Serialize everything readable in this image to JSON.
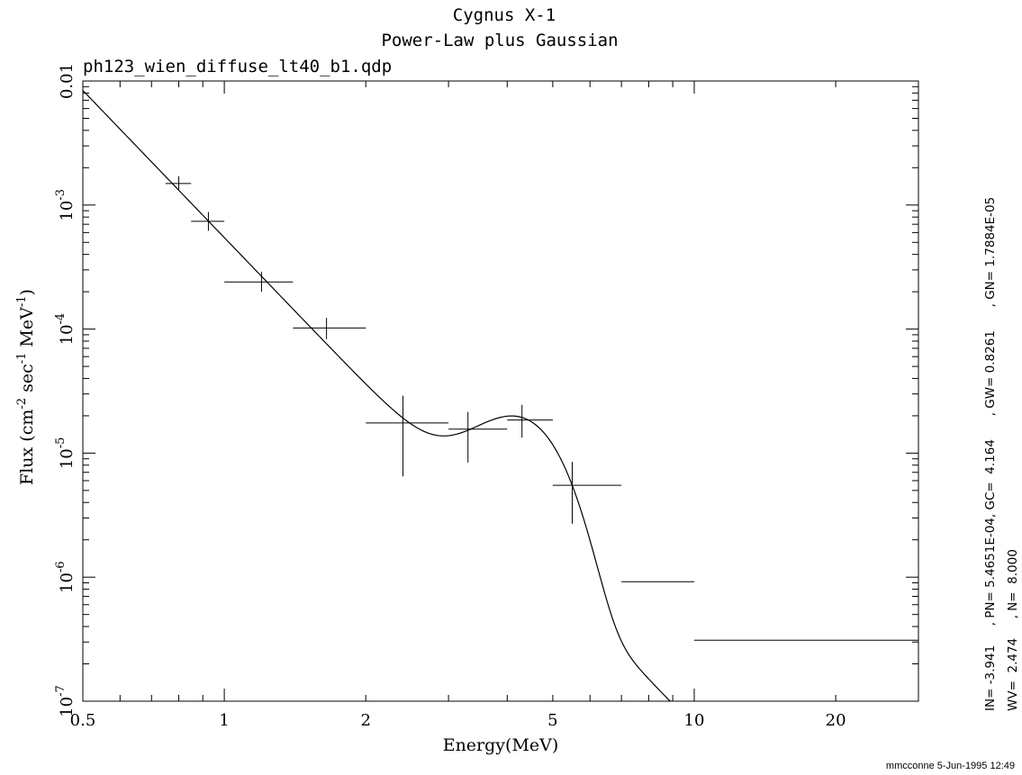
{
  "chart_data": {
    "type": "scatter",
    "title": "Cygnus X-1",
    "subtitle": "Power-Law plus Gaussian",
    "file_label": "ph123_wien_diffuse_lt40_b1.qdp",
    "xlabel": "Energy(MeV)",
    "ylabel_parts": {
      "pre": "Flux (cm",
      "exp1": "-2",
      "mid": " sec",
      "exp2": "-1",
      "mid2": " MeV",
      "exp3": "-1",
      "post": ")"
    },
    "x_scale": "log",
    "y_scale": "log",
    "xlim": [
      0.5,
      30
    ],
    "ylim": [
      1e-07,
      0.01
    ],
    "x_ticks": [
      {
        "value": 0.5,
        "label": "0.5"
      },
      {
        "value": 1,
        "label": "1"
      },
      {
        "value": 2,
        "label": "2"
      },
      {
        "value": 5,
        "label": "5"
      },
      {
        "value": 10,
        "label": "10"
      },
      {
        "value": 20,
        "label": "20"
      }
    ],
    "y_ticks": [
      {
        "value": 0.01,
        "label": "0.01",
        "base": "",
        "exp": ""
      },
      {
        "value": 0.001,
        "label": "",
        "base": "10",
        "exp": "-3"
      },
      {
        "value": 0.0001,
        "label": "",
        "base": "10",
        "exp": "-4"
      },
      {
        "value": 1e-05,
        "label": "",
        "base": "10",
        "exp": "-5"
      },
      {
        "value": 1e-06,
        "label": "",
        "base": "10",
        "exp": "-6"
      },
      {
        "value": 1e-07,
        "label": "",
        "base": "10",
        "exp": "-7"
      }
    ],
    "grid": false,
    "points": [
      {
        "x": 0.8,
        "xlo": 0.75,
        "xhi": 0.85,
        "y": 0.00149,
        "ylo": 0.00131,
        "yhi": 0.00171
      },
      {
        "x": 0.925,
        "xlo": 0.85,
        "xhi": 1.0,
        "y": 0.00074,
        "ylo": 0.00062,
        "yhi": 0.00088
      },
      {
        "x": 1.2,
        "xlo": 1.0,
        "xhi": 1.4,
        "y": 0.00024,
        "ylo": 0.0002,
        "yhi": 0.00029
      },
      {
        "x": 1.65,
        "xlo": 1.4,
        "xhi": 2.0,
        "y": 0.000102,
        "ylo": 8.3e-05,
        "yhi": 0.000123
      },
      {
        "x": 2.4,
        "xlo": 2.0,
        "xhi": 3.0,
        "y": 1.75e-05,
        "ylo": 6.5e-06,
        "yhi": 2.9e-05
      },
      {
        "x": 3.3,
        "xlo": 3.0,
        "xhi": 4.0,
        "y": 1.56e-05,
        "ylo": 8.4e-06,
        "yhi": 2.15e-05
      },
      {
        "x": 4.3,
        "xlo": 4.0,
        "xhi": 5.0,
        "y": 1.85e-05,
        "ylo": 1.33e-05,
        "yhi": 2.45e-05
      },
      {
        "x": 5.5,
        "xlo": 5.0,
        "xhi": 7.0,
        "y": 5.5e-06,
        "ylo": 2.7e-06,
        "yhi": 8.5e-06
      },
      {
        "x": 8.5,
        "xlo": 7.0,
        "xhi": 10.0,
        "y": 9.2e-07,
        "ylo": 9.2e-07,
        "yhi": 9.2e-07
      },
      {
        "x": 20,
        "xlo": 10.0,
        "xhi": 30.0,
        "y": 3.1e-07,
        "ylo": 3.1e-07,
        "yhi": 3.1e-07
      }
    ],
    "model": {
      "name": "Power-Law plus Gaussian",
      "IN": -3.941,
      "PN": 0.00054651,
      "GC": 4.164,
      "GW": 0.8261,
      "GN": 1.7884e-05,
      "WV": 2.474,
      "N": 8.0
    }
  },
  "side_text": {
    "line1": "IN= -3.941     , PN= 5.4651E-04, GC=  4.164      , GW= 0.8261      , GN= 1.7884E-05",
    "line2": "WV=  2.474     , N=  8.000"
  },
  "footer": "mmcconne  5-Jun-1995 12:49"
}
